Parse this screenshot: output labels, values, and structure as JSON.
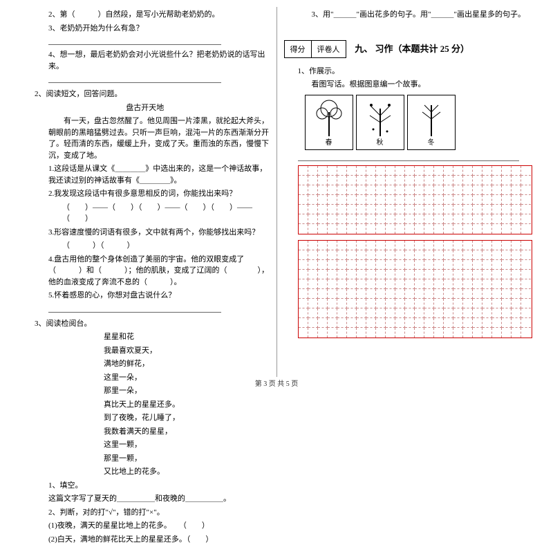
{
  "left": {
    "q2_2": "2、第（　　　）自然段，是写小光帮助老奶奶的。",
    "q2_3": "3、老奶奶开始为什么有急？",
    "q2_4": "4、想一想，最后老奶奶会对小光说些什么？把老奶奶说的话写出来。",
    "q2_title": "2、阅读短文，回答问题。",
    "q2_heading": "盘古开天地",
    "q2_p1": "有一天，盘古忽然醒了。他见周围一片漆黑，就抡起大斧头，朝眼前的黑暗猛劈过去。只听一声巨响，混沌一片的东西渐渐分开了。轻而清的东西，缓缓上升，变成了天。重而浊的东西，慢慢下沉，变成了地。",
    "q2_s1": "1.这段话是从课文《＿＿＿＿》中选出来的，这是一个神话故事，我还读过别的神话故事有《＿＿＿＿》。",
    "q2_s2": "2.我发现这段话中有很多意思相反的词，你能找出来吗？",
    "q2_s2_line": "（　　）——（　　）（　　）——（　　）（　　）——（　　）",
    "q2_s3": "3.形容速度慢的词语有很多，文中就有两个，你能够找出来吗？",
    "q2_s3_line": "（　　　）（　　　）",
    "q2_s4": "4.盘古用他的整个身体创造了美丽的宇宙。他的双眼变成了（　　　）和（　　　）；他的肌肤，变成了辽阔的（　　　　），他的血液变成了奔流不息的（　　　）。",
    "q2_s5": "5.怀着感恩的心，你想对盘古说什么？",
    "q3_title": "3、阅读检阅台。",
    "poem_title": "星星和花",
    "poem": [
      "我最喜欢夏天，",
      "满地的鲜花，",
      "这里一朵，",
      "那里一朵，",
      "真比天上的星星还多。",
      "到了夜晚，花儿睡了，",
      "我数着满天的星星，",
      "这里一颗，",
      "那里一颗，",
      "又比地上的花多。"
    ],
    "q3_s1": "1、填空。",
    "q3_s1_line": "这篇文字写了夏天的＿＿＿＿＿和夜晚的＿＿＿＿＿。",
    "q3_s2": "2、判断，对的打\"√\"，错的打\"×\"。",
    "q3_s2_1": "(1)夜晚，满天的星星比地上的花多。　　（　　）",
    "q3_s2_2": "(2)白天，满地的鲜花比天上的星星还多。（　　）"
  },
  "right": {
    "q3_s3": "3、用\"＿＿＿\"画出花多的句子。用\"＿＿＿\"画出星星多的句子。",
    "score_labels": [
      "得分",
      "评卷人"
    ],
    "section": "九、 习作（本题共计 25 分）",
    "w1": "1、作展示。",
    "w1_desc": "看图写话。根据图意编一个故事。",
    "img_labels": [
      "春",
      "秋",
      "冬"
    ],
    "grid": {
      "cols": 24,
      "block1_rows": 7,
      "block2_rows": 10
    }
  },
  "footer": "第 3 页 共 5 页"
}
